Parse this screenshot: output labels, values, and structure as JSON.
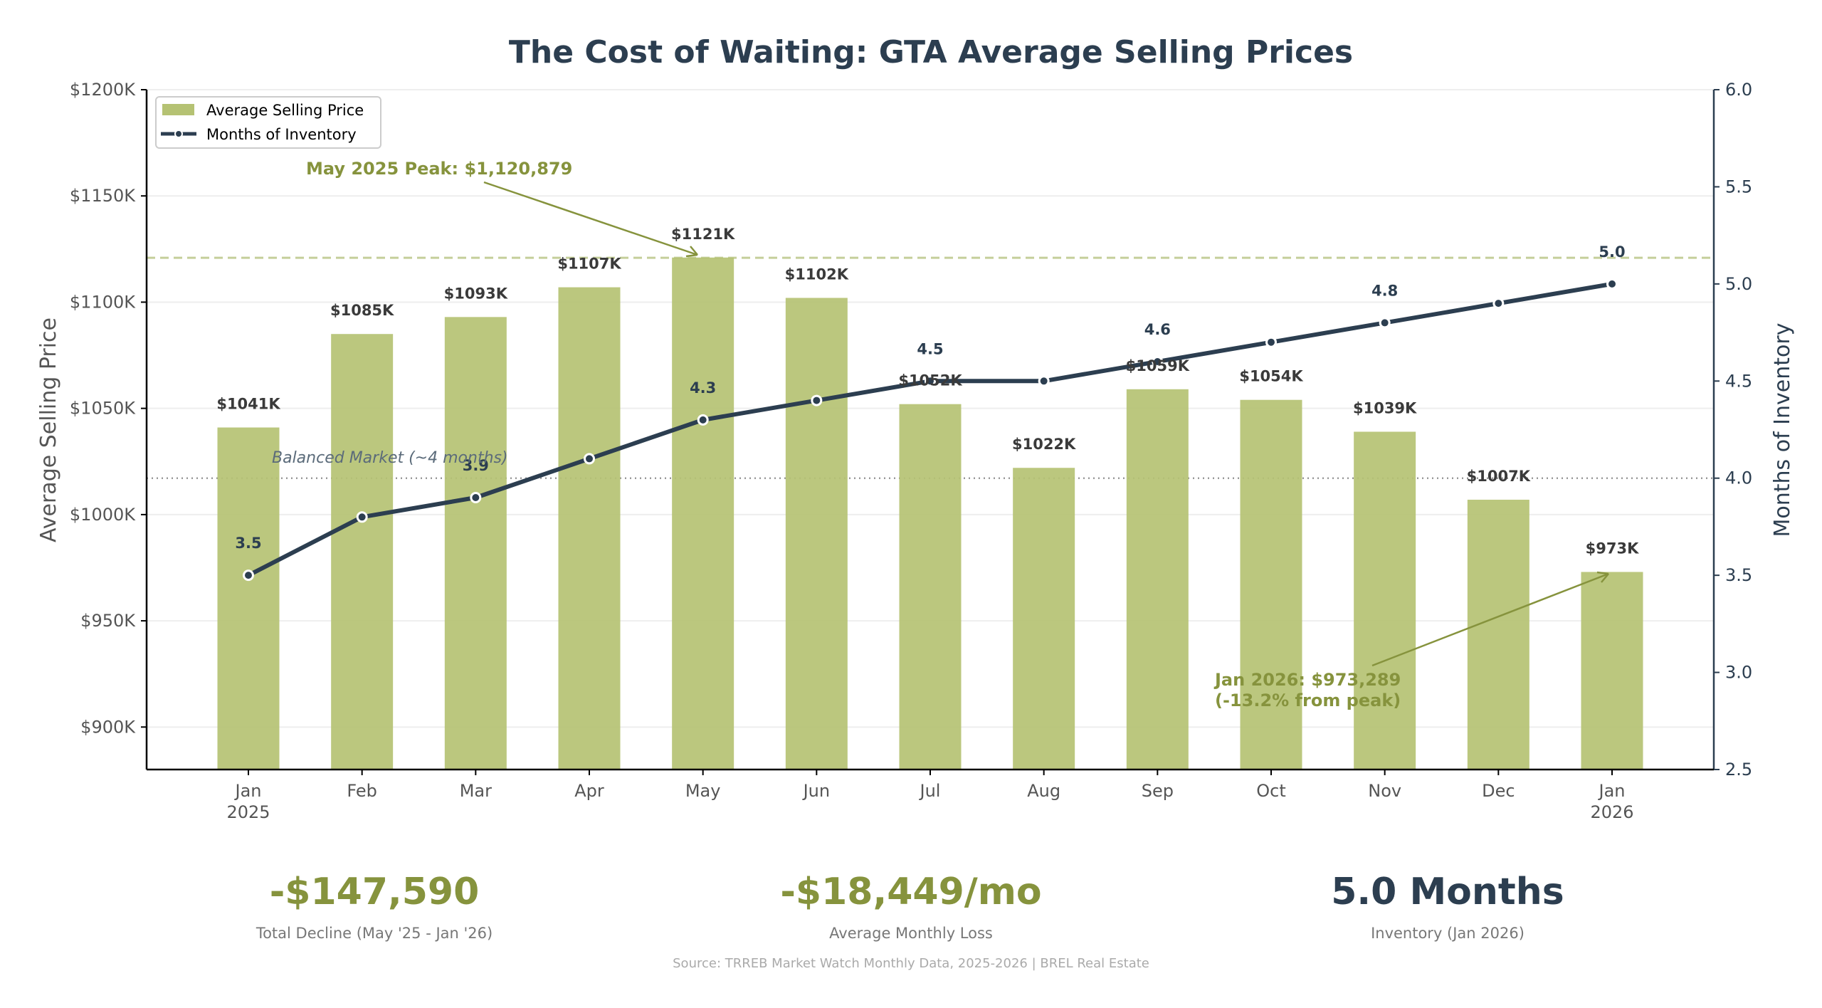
{
  "chart_data": {
    "type": "bar",
    "title": "The Cost of Waiting: GTA Average Selling Prices",
    "categories": [
      "Jan\n2025",
      "Feb",
      "Mar",
      "Apr",
      "May",
      "Jun",
      "Jul",
      "Aug",
      "Sep",
      "Oct",
      "Nov",
      "Dec",
      "Jan\n2026"
    ],
    "series": [
      {
        "name": "Average Selling Price",
        "type": "bar",
        "axis": "left",
        "color": "#b5c273",
        "values": [
          1041,
          1085,
          1093,
          1107,
          1121,
          1102,
          1052,
          1022,
          1059,
          1054,
          1039,
          1007,
          973
        ],
        "labels": [
          "$1041K",
          "$1085K",
          "$1093K",
          "$1107K",
          "$1121K",
          "$1102K",
          "$1052K",
          "$1022K",
          "$1059K",
          "$1054K",
          "$1039K",
          "$1007K",
          "$973K"
        ]
      },
      {
        "name": "Months of Inventory",
        "type": "line",
        "axis": "right",
        "color": "#2c3e50",
        "values": [
          3.5,
          3.8,
          3.9,
          4.1,
          4.3,
          4.4,
          4.5,
          4.5,
          4.6,
          4.7,
          4.8,
          4.9,
          5.0
        ],
        "labels": [
          "3.5",
          "",
          "3.9",
          "",
          "4.3",
          "",
          "4.5",
          "",
          "4.6",
          "",
          "4.8",
          "",
          "5.0"
        ]
      }
    ],
    "ylabel": "Average Selling Price",
    "ylabel_right": "Months of Inventory",
    "ylim": [
      880,
      1200
    ],
    "ylim_right": [
      2.5,
      6.0
    ],
    "yticks": [
      900,
      950,
      1000,
      1050,
      1100,
      1150,
      1200
    ],
    "ytick_labels": [
      "$900K",
      "$950K",
      "$1000K",
      "$1050K",
      "$1100K",
      "$1150K",
      "$1200K"
    ],
    "yticks_right": [
      2.5,
      3.0,
      3.5,
      4.0,
      4.5,
      5.0,
      5.5,
      6.0
    ],
    "ytick_labels_right": [
      "2.5",
      "3.0",
      "3.5",
      "4.0",
      "4.5",
      "5.0",
      "5.5",
      "6.0"
    ],
    "grid": true,
    "legend": {
      "placement": "top-left",
      "entries": [
        "Average Selling Price",
        "Months of Inventory"
      ]
    },
    "reference_lines": [
      {
        "axis": "left",
        "value": 1120.879,
        "style": "dashed",
        "color": "#c5cf9a"
      },
      {
        "axis": "right",
        "value": 4.0,
        "style": "dotted",
        "color": "#999999",
        "label": "Balanced Market (~4 months)"
      }
    ],
    "annotations": [
      {
        "text": "May 2025 Peak: $1,120,879",
        "points_to": "May"
      },
      {
        "text": "Jan 2026: $973,289\n(-13.2% from peak)",
        "points_to": "Jan 2026"
      }
    ]
  },
  "stats": [
    {
      "value": "-$147,590",
      "label": "Total Decline (May '25 - Jan '26)",
      "color": "#86933d"
    },
    {
      "value": "-$18,449/mo",
      "label": "Average Monthly Loss",
      "color": "#86933d"
    },
    {
      "value": "5.0 Months",
      "label": "Inventory (Jan 2026)",
      "color": "#2c3e50"
    }
  ],
  "source": "Source: TRREB Market Watch Monthly Data, 2025-2026 | BREL Real Estate"
}
